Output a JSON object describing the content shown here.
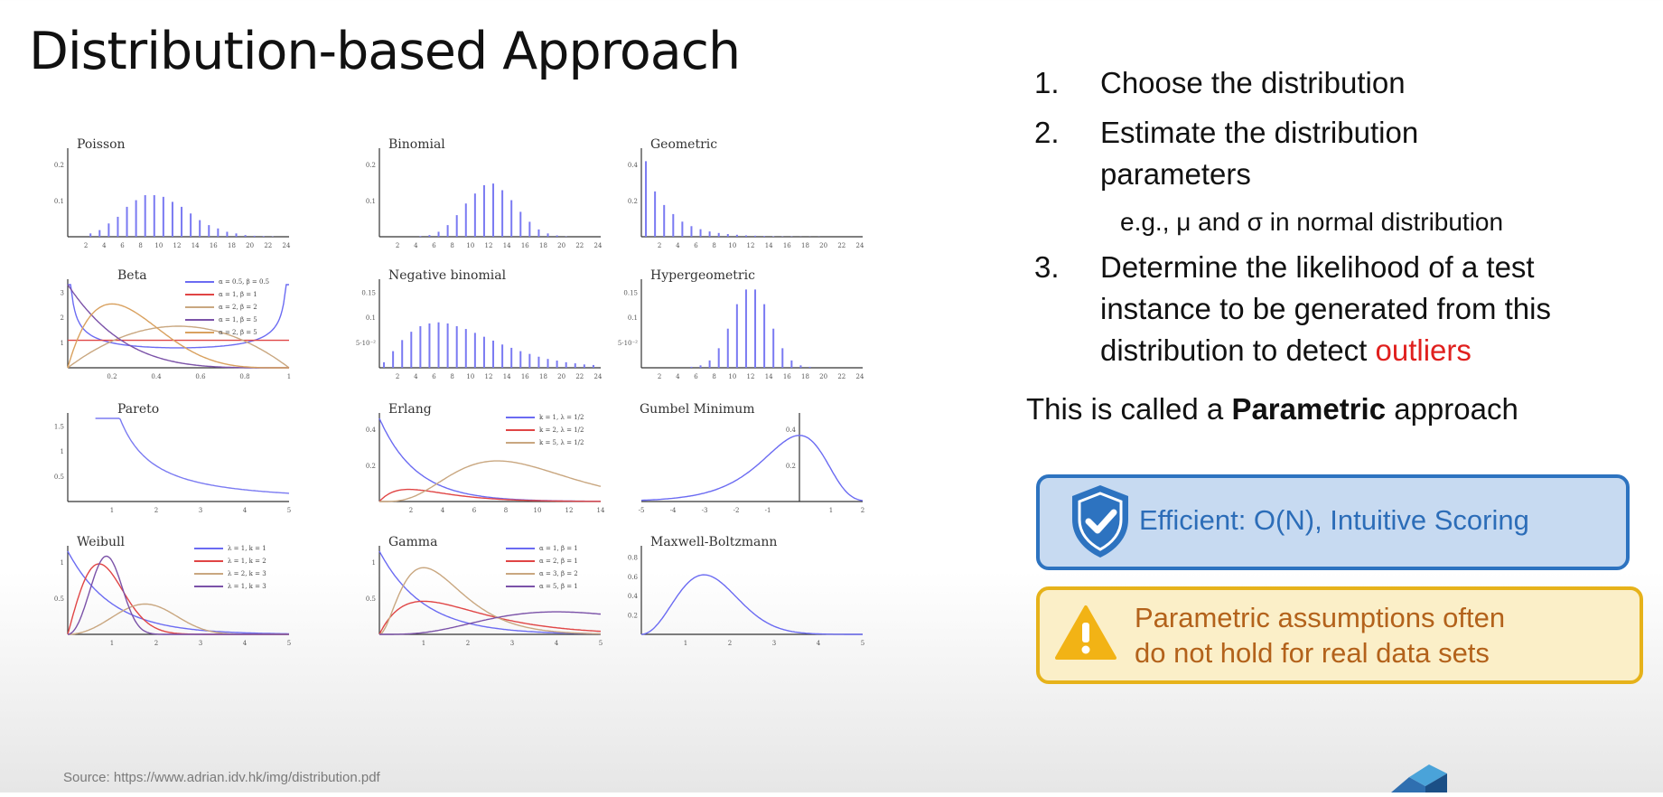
{
  "slide": {
    "title": "Distribution-based Approach",
    "source": "Source: https://www.adrian.idv.hk/img/distribution.pdf"
  },
  "steps": [
    {
      "num": "1.",
      "text": "Choose the distribution"
    },
    {
      "num": "2.",
      "line1": "Estimate the distribution",
      "line2": "parameters",
      "sub": "e.g., μ and σ in normal distribution"
    },
    {
      "num": "3.",
      "line1": "Determine the likelihood of a test",
      "line2": "instance to be generated from this",
      "line3_pre": "distribution to detect ",
      "line3_red": "outliers"
    }
  ],
  "parametric": {
    "pre": "This is called a ",
    "bold": "Parametric",
    "post": " approach"
  },
  "cards": {
    "pro": {
      "text": "Efficient: O(N), Intuitive Scoring",
      "icon": "shield-check-icon",
      "bg": "#c7daf1",
      "border": "#2d73c0",
      "textColor": "#2c6db8"
    },
    "con": {
      "line1": "Parametric assumptions often",
      "line2": "do not hold for real data sets",
      "icon": "warning-icon",
      "bg": "#fbefc8",
      "border": "#e6b21a",
      "textColor": "#b3621b"
    }
  },
  "chart_data": [
    {
      "type": "bar",
      "title": "Poisson",
      "x": [
        1,
        2,
        3,
        4,
        5,
        6,
        7,
        8,
        9,
        10,
        11,
        12,
        13,
        14,
        15,
        16,
        17,
        18,
        19,
        20,
        21,
        22,
        23,
        24
      ],
      "values": [
        0.0,
        0.0,
        0.01,
        0.02,
        0.04,
        0.06,
        0.09,
        0.11,
        0.125,
        0.125,
        0.12,
        0.105,
        0.09,
        0.07,
        0.05,
        0.035,
        0.025,
        0.015,
        0.01,
        0.005,
        0.003,
        0.002,
        0.001,
        0.0
      ],
      "xticks": [
        "2",
        "4",
        "6",
        "8",
        "10",
        "12",
        "14",
        "16",
        "18",
        "20",
        "22",
        "24"
      ],
      "yticks": [
        "0.1",
        "0.2"
      ],
      "ylim": [
        0,
        0.25
      ]
    },
    {
      "type": "bar",
      "title": "Binomial",
      "x": [
        1,
        2,
        3,
        4,
        5,
        6,
        7,
        8,
        9,
        10,
        11,
        12,
        13,
        14,
        15,
        16,
        17,
        18,
        19,
        20,
        21,
        22,
        23,
        24
      ],
      "values": [
        0,
        0,
        0,
        0,
        0.002,
        0.005,
        0.015,
        0.035,
        0.065,
        0.1,
        0.13,
        0.155,
        0.16,
        0.14,
        0.11,
        0.075,
        0.045,
        0.022,
        0.01,
        0.004,
        0.001,
        0,
        0,
        0
      ],
      "xticks": [
        "2",
        "4",
        "6",
        "8",
        "10",
        "12",
        "14",
        "16",
        "18",
        "20",
        "22",
        "24"
      ],
      "yticks": [
        "0.1",
        "0.2"
      ],
      "ylim": [
        0,
        0.25
      ]
    },
    {
      "type": "bar",
      "title": "Geometric",
      "x": [
        1,
        2,
        3,
        4,
        5,
        6,
        7,
        8,
        9,
        10,
        11,
        12,
        13,
        14,
        15,
        16,
        17,
        18,
        19,
        20,
        21,
        22,
        23,
        24
      ],
      "values": [
        0.5,
        0.3,
        0.21,
        0.15,
        0.1,
        0.07,
        0.05,
        0.035,
        0.025,
        0.018,
        0.013,
        0.009,
        0.007,
        0.005,
        0.003,
        0.002,
        0.002,
        0.001,
        0.001,
        0.001,
        0,
        0,
        0,
        0
      ],
      "xticks": [
        "2",
        "4",
        "6",
        "8",
        "10",
        "12",
        "14",
        "16",
        "18",
        "20",
        "22",
        "24"
      ],
      "yticks": [
        "0.2",
        "0.4"
      ],
      "ylim": [
        0,
        0.55
      ]
    },
    {
      "type": "line",
      "title": "Beta",
      "legend": [
        "α = 0.5, β = 0.5",
        "α = 1, β = 1",
        "α = 2, β = 2",
        "α = 1, β = 5",
        "α = 2, β = 5"
      ],
      "xticks": [
        "0.2",
        "0.4",
        "0.6",
        "0.8",
        "1"
      ],
      "yticks": [
        "1",
        "2",
        "3"
      ]
    },
    {
      "type": "bar",
      "title": "Negative binomial",
      "x": [
        1,
        2,
        3,
        4,
        5,
        6,
        7,
        8,
        9,
        10,
        11,
        12,
        13,
        14,
        15,
        16,
        17,
        18,
        19,
        20,
        21,
        22,
        23,
        24
      ],
      "values": [
        0.01,
        0.03,
        0.05,
        0.065,
        0.075,
        0.08,
        0.082,
        0.08,
        0.075,
        0.07,
        0.063,
        0.056,
        0.049,
        0.042,
        0.036,
        0.03,
        0.025,
        0.02,
        0.016,
        0.013,
        0.01,
        0.008,
        0.006,
        0.005
      ],
      "xticks": [
        "2",
        "4",
        "6",
        "8",
        "10",
        "12",
        "14",
        "16",
        "18",
        "20",
        "22",
        "24"
      ],
      "yticks": [
        "5·10⁻²",
        "0.1",
        "0.15"
      ],
      "ylim": [
        0,
        0.15
      ]
    },
    {
      "type": "bar",
      "title": "Hypergeometric",
      "x": [
        1,
        2,
        3,
        4,
        5,
        6,
        7,
        8,
        9,
        10,
        11,
        12,
        13,
        14,
        15,
        16,
        17,
        18,
        19,
        20,
        21,
        22,
        23,
        24
      ],
      "values": [
        0,
        0,
        0,
        0,
        0,
        0.002,
        0.005,
        0.015,
        0.04,
        0.08,
        0.13,
        0.16,
        0.16,
        0.13,
        0.08,
        0.04,
        0.015,
        0.005,
        0.002,
        0,
        0,
        0,
        0,
        0
      ],
      "xticks": [
        "2",
        "4",
        "6",
        "8",
        "10",
        "12",
        "14",
        "16",
        "18",
        "20",
        "22",
        "24"
      ],
      "yticks": [
        "5·10⁻²",
        "0.1",
        "0.15"
      ],
      "ylim": [
        0,
        0.17
      ]
    },
    {
      "type": "line",
      "title": "Pareto",
      "xticks": [
        "1",
        "2",
        "3",
        "4",
        "5"
      ],
      "yticks": [
        "0.5",
        "1",
        "1.5"
      ]
    },
    {
      "type": "line",
      "title": "Erlang",
      "legend": [
        "k = 1, λ = 1/2",
        "k = 2, λ = 1/2",
        "k = 5, λ = 1/2"
      ],
      "xticks": [
        "2",
        "4",
        "6",
        "8",
        "10",
        "12",
        "14"
      ],
      "yticks": [
        "0.2",
        "0.4"
      ]
    },
    {
      "type": "line",
      "title": "Gumbel Minimum",
      "xticks": [
        "-5",
        "-4",
        "-3",
        "-2",
        "-1",
        "",
        "1",
        "2"
      ],
      "yticks": [
        "0.2",
        "0.4"
      ]
    },
    {
      "type": "line",
      "title": "Weibull",
      "legend": [
        "λ = 1, k = 1",
        "λ = 1, k = 2",
        "λ = 2, k = 3",
        "λ = 1, k = 3"
      ],
      "xticks": [
        "1",
        "2",
        "3",
        "4",
        "5"
      ],
      "yticks": [
        "0.5",
        "1"
      ]
    },
    {
      "type": "line",
      "title": "Gamma",
      "legend": [
        "α = 1, β = 1",
        "α = 2, β = 1",
        "α = 3, β = 2",
        "α = 5, β = 1"
      ],
      "xticks": [
        "1",
        "2",
        "3",
        "4",
        "5"
      ],
      "yticks": [
        "0.5",
        "1"
      ]
    },
    {
      "type": "line",
      "title": "Maxwell-Boltzmann",
      "xticks": [
        "1",
        "2",
        "3",
        "4",
        "5"
      ],
      "yticks": [
        "0.2",
        "0.4",
        "0.6",
        "0.8"
      ]
    }
  ]
}
